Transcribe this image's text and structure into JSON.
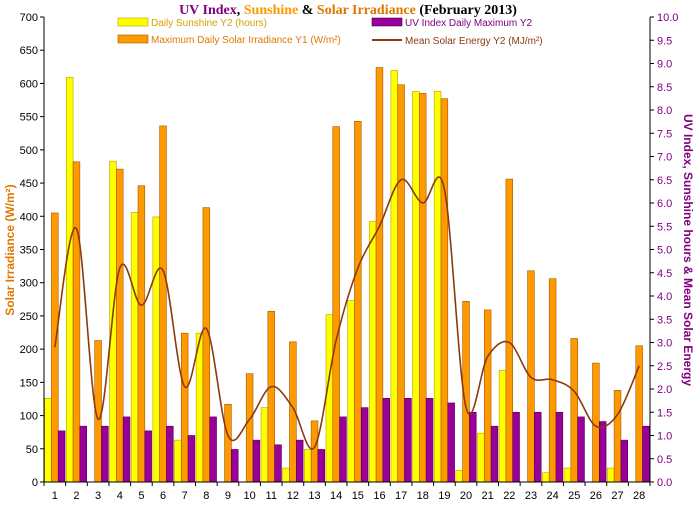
{
  "chart_data": {
    "type": "bar",
    "title_parts": [
      {
        "text": "UV Index",
        "color": "#800080"
      },
      {
        "text": ", ",
        "color": "#000000"
      },
      {
        "text": "Sunshine",
        "color": "#FF9900"
      },
      {
        "text": " & ",
        "color": "#000000"
      },
      {
        "text": "Solar Irradiance",
        "color": "#E07800"
      },
      {
        "text": " (February 2013)",
        "color": "#000000"
      }
    ],
    "ylabel_left": "Solar Irradiance (W/m²)",
    "ylabel_right": "UV Index, Sunshine hours & Mean Solar Energy",
    "ylim_left": [
      0,
      700
    ],
    "ylim_right": [
      0,
      10
    ],
    "yticks_left": [
      "0",
      "50",
      "100",
      "150",
      "200",
      "250",
      "300",
      "350",
      "400",
      "450",
      "500",
      "550",
      "600",
      "650",
      "700"
    ],
    "yticks_right": [
      "0.0",
      "0.5",
      "1.0",
      "1.5",
      "2.0",
      "2.5",
      "3.0",
      "3.5",
      "4.0",
      "4.5",
      "5.0",
      "5.5",
      "6.0",
      "6.5",
      "7.0",
      "7.5",
      "8.0",
      "8.5",
      "9.0",
      "9.5",
      "10.0"
    ],
    "categories": [
      "1",
      "2",
      "3",
      "4",
      "5",
      "6",
      "7",
      "8",
      "9",
      "10",
      "11",
      "12",
      "13",
      "14",
      "15",
      "16",
      "17",
      "18",
      "19",
      "20",
      "21",
      "22",
      "23",
      "24",
      "25",
      "26",
      "27",
      "28"
    ],
    "grid": false,
    "legend_placement": "top",
    "series": [
      {
        "name": "Daily Sunshine Y2 (hours)",
        "type": "bar",
        "axis": "right",
        "color": "#FFFF00",
        "edge": "#B8A000",
        "values": [
          1.8,
          8.7,
          0,
          6.9,
          5.8,
          5.7,
          0.9,
          3.2,
          0,
          0,
          1.6,
          0.3,
          0.7,
          3.6,
          3.9,
          5.6,
          8.85,
          8.4,
          8.4,
          0.25,
          1.05,
          2.4,
          0,
          0.2,
          0.3,
          0,
          0.3,
          0
        ]
      },
      {
        "name": "Maximum Daily Solar Irradiance Y1 (W/m²)",
        "type": "bar",
        "axis": "left",
        "color": "#FF9900",
        "edge": "#A05A00",
        "values": [
          405,
          482,
          213,
          471,
          446,
          536,
          224,
          413,
          117,
          163,
          257,
          211,
          92,
          535,
          543,
          624,
          598,
          585,
          577,
          272,
          259,
          456,
          318,
          306,
          216,
          179,
          138,
          205
        ]
      },
      {
        "name": "UV Index Daily Maximum Y2",
        "type": "bar",
        "axis": "right",
        "color": "#990099",
        "edge": "#500050",
        "values": [
          1.1,
          1.2,
          1.2,
          1.4,
          1.1,
          1.2,
          1.0,
          1.4,
          0.7,
          0.9,
          0.8,
          0.9,
          0.7,
          1.4,
          1.6,
          1.8,
          1.8,
          1.8,
          1.7,
          1.5,
          1.2,
          1.5,
          1.5,
          1.5,
          1.4,
          1.3,
          0.9,
          1.2
        ]
      },
      {
        "name": "Mean Solar Energy Y2 (MJ/m²)",
        "type": "line",
        "axis": "right",
        "color": "#8B3A0F",
        "values": [
          2.9,
          5.45,
          1.35,
          4.6,
          3.8,
          4.55,
          2.05,
          3.3,
          1.0,
          1.35,
          2.05,
          1.6,
          0.75,
          3.05,
          4.6,
          5.5,
          6.5,
          6.0,
          6.3,
          1.6,
          2.7,
          3.0,
          2.25,
          2.2,
          1.95,
          1.2,
          1.45,
          2.5
        ]
      }
    ]
  }
}
